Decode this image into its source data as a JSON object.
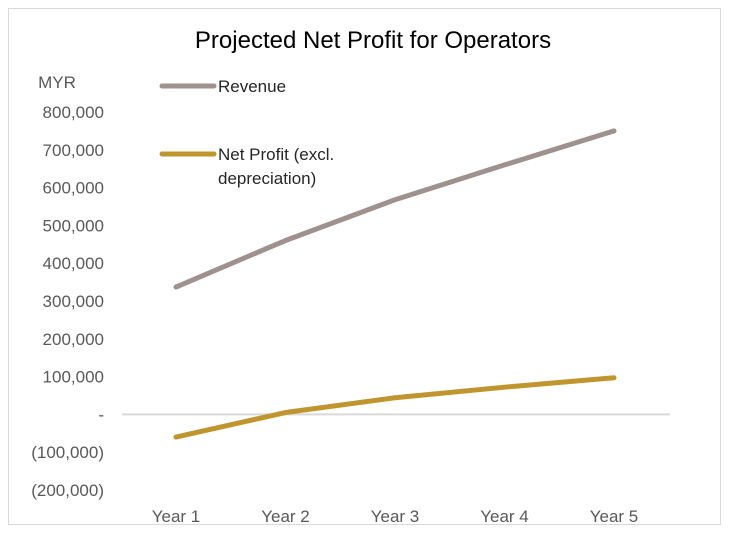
{
  "chart_data": {
    "type": "line",
    "title": "Projected Net Profit for Operators",
    "ylabel": "MYR",
    "xlabel": "",
    "categories": [
      "Year 1",
      "Year 2",
      "Year 3",
      "Year 4",
      "Year 5"
    ],
    "ylim": [
      -200000,
      800000
    ],
    "y_ticks": [
      800000,
      700000,
      600000,
      500000,
      400000,
      300000,
      200000,
      100000,
      0,
      -100000,
      -200000
    ],
    "y_tick_labels": [
      "800,000",
      "700,000",
      "600,000",
      "500,000",
      "400,000",
      "300,000",
      "200,000",
      "100,000",
      "-",
      "(100,000)",
      "(200,000)"
    ],
    "grid": false,
    "legend_position": "top-left",
    "series": [
      {
        "name": "Revenue",
        "color": "#9e918e",
        "values": [
          337000,
          460000,
          568000,
          660000,
          750000
        ]
      },
      {
        "name": "Net Profit (excl. depreciation)",
        "legend_lines": [
          "Net Profit (excl.",
          "depreciation)"
        ],
        "color": "#c0952d",
        "values": [
          -60000,
          5000,
          44000,
          72000,
          97000
        ]
      }
    ],
    "zero_line_color": "#d9d9d9"
  }
}
